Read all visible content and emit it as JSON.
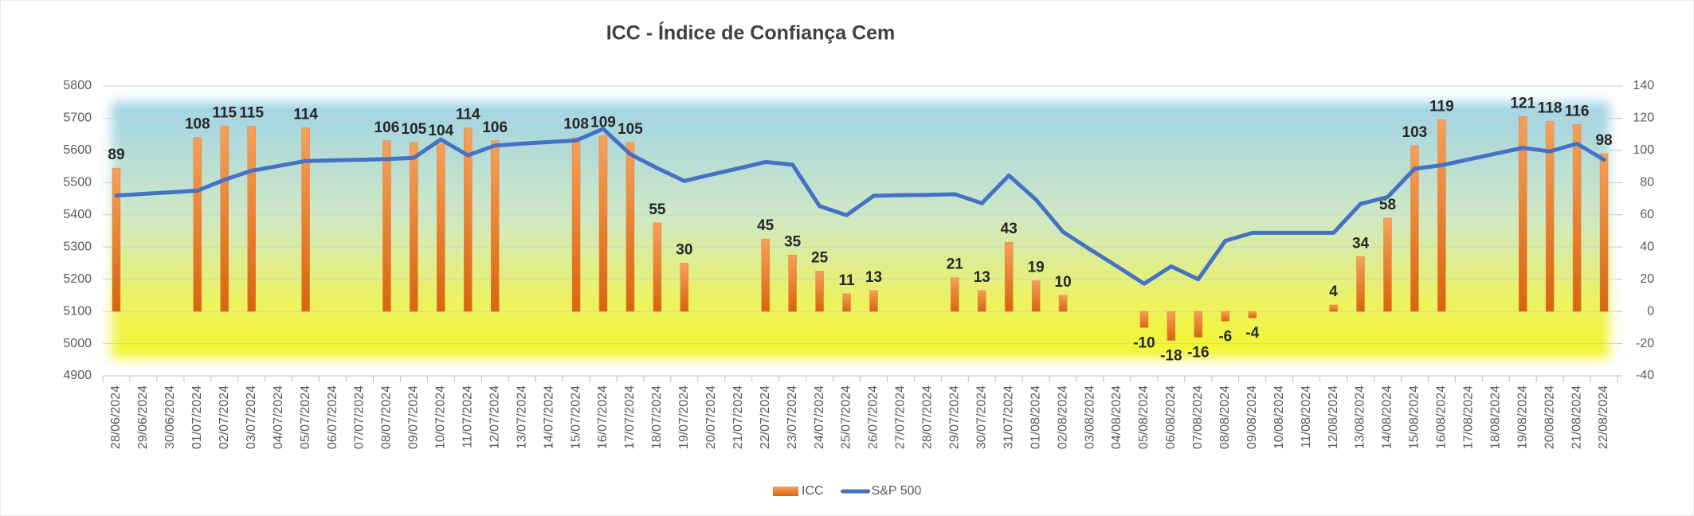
{
  "chart_data": {
    "type": "combo",
    "title": "ICC - Índice de Confiança Cem",
    "categories": [
      "28/06/2024",
      "29/06/2024",
      "30/06/2024",
      "01/07/2024",
      "02/07/2024",
      "03/07/2024",
      "04/07/2024",
      "05/07/2024",
      "06/07/2024",
      "07/07/2024",
      "08/07/2024",
      "09/07/2024",
      "10/07/2024",
      "11/07/2024",
      "12/07/2024",
      "13/07/2024",
      "14/07/2024",
      "15/07/2024",
      "16/07/2024",
      "17/07/2024",
      "18/07/2024",
      "19/07/2024",
      "20/07/2024",
      "21/07/2024",
      "22/07/2024",
      "23/07/2024",
      "24/07/2024",
      "25/07/2024",
      "26/07/2024",
      "27/07/2024",
      "28/07/2024",
      "29/07/2024",
      "30/07/2024",
      "31/07/2024",
      "01/08/2024",
      "02/08/2024",
      "03/08/2024",
      "04/08/2024",
      "05/08/2024",
      "06/08/2024",
      "07/08/2024",
      "08/08/2024",
      "09/08/2024",
      "10/08/2024",
      "11/08/2024",
      "12/08/2024",
      "13/08/2024",
      "14/08/2024",
      "15/08/2024",
      "16/08/2024",
      "17/08/2024",
      "18/08/2024",
      "19/08/2024",
      "20/08/2024",
      "21/08/2024",
      "22/08/2024"
    ],
    "series": [
      {
        "name": "ICC",
        "type": "bar",
        "axis": "y2",
        "color": "#ed7d31",
        "values": [
          89,
          null,
          null,
          108,
          115,
          115,
          null,
          114,
          null,
          null,
          106,
          105,
          104,
          114,
          106,
          null,
          null,
          108,
          109,
          105,
          55,
          30,
          null,
          null,
          45,
          35,
          25,
          11,
          13,
          null,
          null,
          21,
          13,
          43,
          19,
          10,
          null,
          null,
          -10,
          -18,
          -16,
          -6,
          -4,
          null,
          null,
          4,
          34,
          58,
          103,
          119,
          null,
          null,
          121,
          118,
          116,
          98
        ]
      },
      {
        "name": "S&P 500",
        "type": "line",
        "color": "#4472c4",
        "values": [
          5460,
          5465,
          5470,
          5475,
          5509,
          5537,
          5552,
          5567,
          5569,
          5571,
          5573,
          5577,
          5634,
          5585,
          5615,
          5621,
          5626,
          5631,
          5667,
          5588,
          5545,
          5505,
          5525,
          5544,
          5564,
          5556,
          5427,
          5399,
          5459,
          5461,
          5462,
          5464,
          5436,
          5522,
          5447,
          5347,
          5293,
          5240,
          5186,
          5240,
          5200,
          5319,
          5344,
          5344,
          5344,
          5344,
          5434,
          5455,
          5543,
          5554,
          5572,
          5590,
          5608,
          5597,
          5621,
          5571
        ]
      }
    ],
    "ylim": [
      4900,
      5800
    ],
    "yticks": [
      4900,
      5000,
      5100,
      5200,
      5300,
      5400,
      5500,
      5600,
      5700,
      5800
    ],
    "y2lim": [
      -40,
      140
    ],
    "y2ticks": [
      -40,
      -20,
      0,
      20,
      40,
      60,
      80,
      100,
      120,
      140
    ],
    "grid": true,
    "legend": "bottom"
  }
}
